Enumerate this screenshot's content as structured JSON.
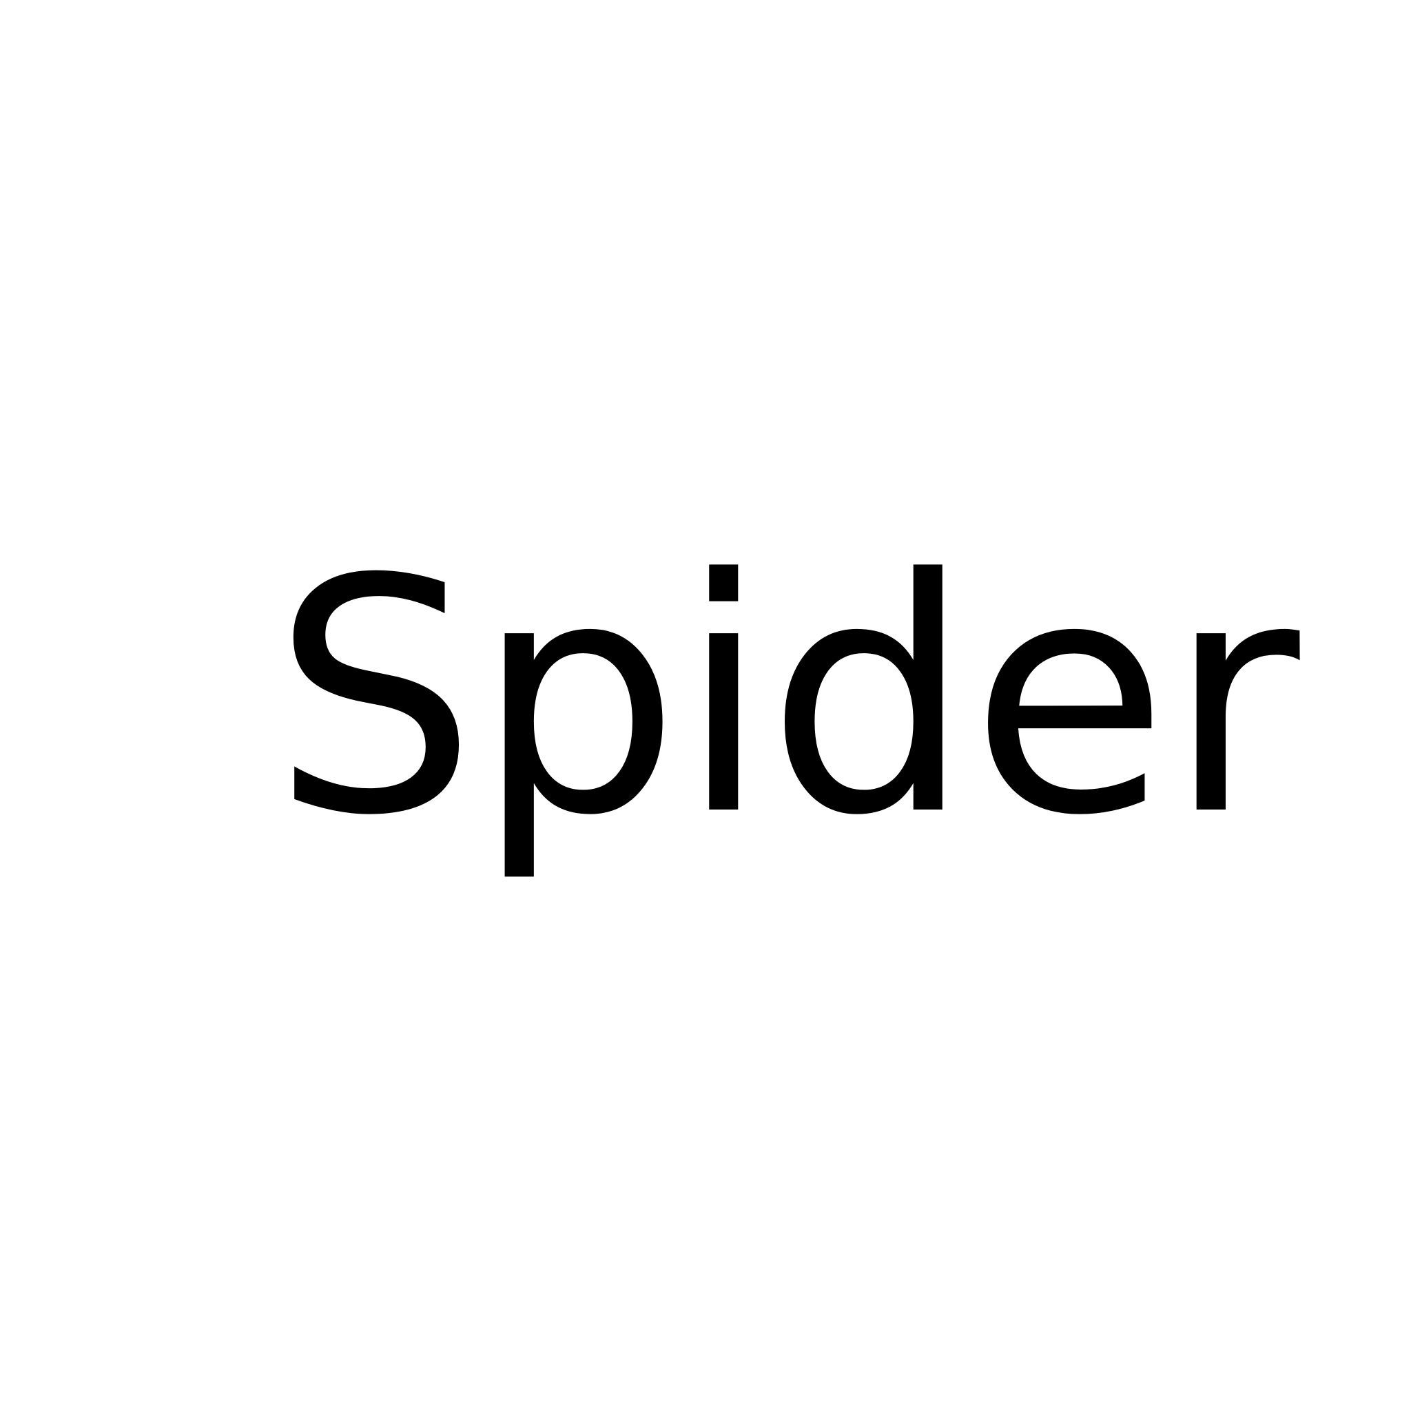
{
  "word": "Spider",
  "colors": {
    "background": "#ffffff",
    "text": "#000000"
  }
}
